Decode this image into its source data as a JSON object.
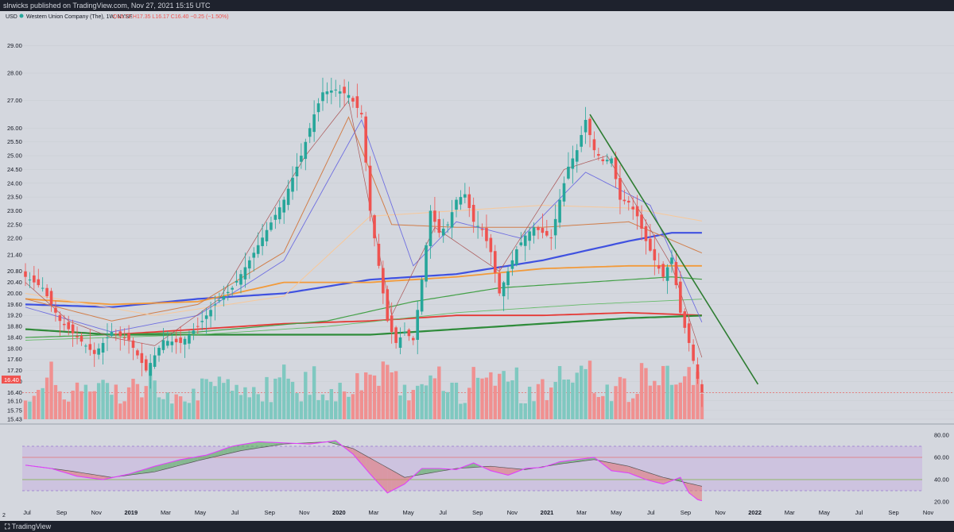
{
  "header": {
    "publish_line": "slrwicks published on TradingView.com, Nov 27, 2021 15:15 UTC",
    "currency": "USD",
    "symbol": "Western Union Company (The), 1W, NYSE",
    "ohlc": "O16.72 H17.35 L16.17 C16.40 −0.25 (−1.50%)",
    "ohlc_color": "#ef5350"
  },
  "footer": {
    "brand": "TradingView",
    "logo_icon": "tradingview-logo-icon"
  },
  "colors": {
    "background": "#d4d7de",
    "up_candle": "#26a69a",
    "down_candle": "#ef5350",
    "volume_up": "#7fc8c0",
    "volume_down": "#f09090",
    "trendline": "#2e7d32",
    "price_tag": "#ef5350",
    "rsi_line": "#e040fb",
    "rsi_band": "#c6b3e0"
  },
  "chart_data": [
    {
      "type": "candlestick",
      "title": "Western Union Company (The), 1W, NYSE",
      "ylabel": "USD",
      "ylim": [
        15.43,
        29.5
      ],
      "y_ticks": [
        "29.00",
        "28.00",
        "27.00",
        "26.00",
        "25.50",
        "25.00",
        "24.50",
        "24.00",
        "23.50",
        "23.00",
        "22.50",
        "22.00",
        "21.40",
        "20.80",
        "20.40",
        "20.00",
        "19.60",
        "19.20",
        "18.80",
        "18.40",
        "18.00",
        "17.60",
        "17.20",
        "16.80",
        "16.40",
        "16.10",
        "15.75",
        "15.43"
      ],
      "last_price": 16.4,
      "x_ticks": [
        "Jul",
        "Sep",
        "Nov",
        "2019",
        "Mar",
        "May",
        "Jul",
        "Sep",
        "Nov",
        "2020",
        "Mar",
        "May",
        "Jul",
        "Sep",
        "Nov",
        "2021",
        "Mar",
        "May",
        "Jul",
        "Sep",
        "Nov",
        "2022",
        "Mar",
        "May",
        "Jul",
        "Sep",
        "Nov"
      ],
      "anchors": [
        [
          0,
          20.6
        ],
        [
          4,
          20.2
        ],
        [
          8,
          19.0
        ],
        [
          12,
          18.4
        ],
        [
          16,
          17.8
        ],
        [
          20,
          18.6
        ],
        [
          24,
          18.3
        ],
        [
          28,
          17.2
        ],
        [
          32,
          18.3
        ],
        [
          36,
          18.2
        ],
        [
          40,
          18.8
        ],
        [
          44,
          19.6
        ],
        [
          48,
          20.2
        ],
        [
          52,
          21.2
        ],
        [
          56,
          22.3
        ],
        [
          60,
          23.4
        ],
        [
          64,
          25.0
        ],
        [
          67,
          26.5
        ],
        [
          69,
          27.3
        ],
        [
          72,
          27.4
        ],
        [
          75,
          27.2
        ],
        [
          78,
          26.5
        ],
        [
          80,
          23.0
        ],
        [
          82,
          21.0
        ],
        [
          84,
          19.0
        ],
        [
          86,
          18.2
        ],
        [
          88,
          18.6
        ],
        [
          90,
          18.3
        ],
        [
          92,
          20.5
        ],
        [
          94,
          23.0
        ],
        [
          96,
          22.2
        ],
        [
          98,
          22.5
        ],
        [
          100,
          23.4
        ],
        [
          102,
          23.6
        ],
        [
          104,
          22.6
        ],
        [
          106,
          22.3
        ],
        [
          108,
          21.5
        ],
        [
          110,
          20.0
        ],
        [
          112,
          20.8
        ],
        [
          114,
          21.6
        ],
        [
          116,
          22.1
        ],
        [
          118,
          22.4
        ],
        [
          120,
          22.2
        ],
        [
          122,
          22.0
        ],
        [
          124,
          23.4
        ],
        [
          126,
          24.6
        ],
        [
          128,
          25.2
        ],
        [
          130,
          26.3
        ],
        [
          132,
          25.2
        ],
        [
          134,
          24.8
        ],
        [
          136,
          24.9
        ],
        [
          138,
          23.4
        ],
        [
          140,
          23.3
        ],
        [
          142,
          22.8
        ],
        [
          144,
          21.9
        ],
        [
          146,
          21.2
        ],
        [
          148,
          20.6
        ],
        [
          150,
          21.3
        ],
        [
          152,
          19.3
        ],
        [
          154,
          18.2
        ],
        [
          156,
          16.9
        ],
        [
          157,
          16.4
        ]
      ],
      "trendline": {
        "from": [
          131,
          26.5
        ],
        "to": [
          170,
          16.7
        ]
      },
      "moving_averages": [
        {
          "color": "#3f51e0",
          "width": 2.2,
          "points": [
            [
              0,
              19.6
            ],
            [
              20,
              19.5
            ],
            [
              40,
              19.8
            ],
            [
              60,
              20.0
            ],
            [
              80,
              20.5
            ],
            [
              100,
              20.7
            ],
            [
              120,
              21.2
            ],
            [
              140,
              21.9
            ],
            [
              150,
              22.2
            ],
            [
              158,
              22.2
            ]
          ]
        },
        {
          "color": "#f29a3a",
          "width": 1.8,
          "points": [
            [
              0,
              19.8
            ],
            [
              20,
              19.6
            ],
            [
              40,
              19.7
            ],
            [
              60,
              20.4
            ],
            [
              80,
              20.4
            ],
            [
              100,
              20.6
            ],
            [
              120,
              20.9
            ],
            [
              140,
              21.0
            ],
            [
              158,
              21.0
            ]
          ]
        },
        {
          "color": "#e53935",
          "width": 1.8,
          "points": [
            [
              0,
              18.7
            ],
            [
              20,
              18.5
            ],
            [
              40,
              18.7
            ],
            [
              60,
              18.9
            ],
            [
              80,
              19.0
            ],
            [
              100,
              19.2
            ],
            [
              120,
              19.2
            ],
            [
              140,
              19.3
            ],
            [
              158,
              19.2
            ]
          ]
        },
        {
          "color": "#2e8b3a",
          "width": 2.2,
          "points": [
            [
              0,
              18.7
            ],
            [
              20,
              18.5
            ],
            [
              40,
              18.5
            ],
            [
              60,
              18.5
            ],
            [
              80,
              18.5
            ],
            [
              100,
              18.7
            ],
            [
              120,
              18.9
            ],
            [
              140,
              19.1
            ],
            [
              158,
              19.2
            ]
          ]
        },
        {
          "color": "#43a047",
          "width": 1.2,
          "points": [
            [
              0,
              18.4
            ],
            [
              40,
              18.6
            ],
            [
              70,
              19.0
            ],
            [
              90,
              19.7
            ],
            [
              110,
              20.2
            ],
            [
              130,
              20.4
            ],
            [
              150,
              20.6
            ],
            [
              158,
              20.5
            ]
          ]
        },
        {
          "color": "#66bb6a",
          "width": 0.9,
          "points": [
            [
              0,
              18.3
            ],
            [
              40,
              18.5
            ],
            [
              70,
              18.8
            ],
            [
              100,
              19.3
            ],
            [
              130,
              19.6
            ],
            [
              158,
              19.8
            ]
          ]
        },
        {
          "color": "#d17e4a",
          "width": 1.0,
          "points": [
            [
              0,
              19.8
            ],
            [
              20,
              19.0
            ],
            [
              40,
              19.6
            ],
            [
              60,
              21.5
            ],
            [
              75,
              26.4
            ],
            [
              85,
              22.5
            ],
            [
              100,
              22.4
            ],
            [
              120,
              22.4
            ],
            [
              140,
              22.6
            ],
            [
              158,
              21.4
            ]
          ]
        },
        {
          "color": "#f7c89a",
          "width": 1.0,
          "points": [
            [
              0,
              20.0
            ],
            [
              30,
              19.2
            ],
            [
              60,
              19.9
            ],
            [
              80,
              22.8
            ],
            [
              100,
              23.0
            ],
            [
              120,
              23.2
            ],
            [
              140,
              23.1
            ],
            [
              158,
              22.6
            ]
          ]
        },
        {
          "color": "#6f6fe0",
          "width": 0.9,
          "points": [
            [
              0,
              19.5
            ],
            [
              20,
              18.6
            ],
            [
              40,
              19.2
            ],
            [
              60,
              21.2
            ],
            [
              78,
              26.3
            ],
            [
              90,
              21.0
            ],
            [
              100,
              22.6
            ],
            [
              115,
              22.0
            ],
            [
              130,
              24.4
            ],
            [
              145,
              23.2
            ],
            [
              158,
              18.6
            ]
          ]
        },
        {
          "color": "#a55",
          "width": 0.7,
          "points": [
            [
              0,
              20.4
            ],
            [
              10,
              19.0
            ],
            [
              20,
              18.4
            ],
            [
              30,
              18.1
            ],
            [
              45,
              19.8
            ],
            [
              65,
              25.0
            ],
            [
              75,
              27.0
            ],
            [
              85,
              19.2
            ],
            [
              95,
              22.4
            ],
            [
              110,
              20.8
            ],
            [
              125,
              24.5
            ],
            [
              135,
              25.0
            ],
            [
              150,
              21.0
            ],
            [
              158,
              17.2
            ]
          ]
        }
      ],
      "volume_max_note": "relative volume per week, 0-1"
    },
    {
      "type": "line",
      "title": "",
      "ylim": [
        20,
        80
      ],
      "y_ticks": [
        "80.00",
        "60.00",
        "40.00",
        "20.00"
      ],
      "upper_band": 70,
      "lower_band": 30,
      "level_lines": [
        60,
        40
      ],
      "rsi_anchors": [
        [
          0,
          53
        ],
        [
          6,
          50
        ],
        [
          12,
          43
        ],
        [
          18,
          40
        ],
        [
          24,
          45
        ],
        [
          30,
          52
        ],
        [
          36,
          58
        ],
        [
          42,
          62
        ],
        [
          48,
          70
        ],
        [
          54,
          74
        ],
        [
          60,
          73
        ],
        [
          66,
          72
        ],
        [
          72,
          75
        ],
        [
          76,
          63
        ],
        [
          80,
          45
        ],
        [
          84,
          28
        ],
        [
          88,
          36
        ],
        [
          92,
          50
        ],
        [
          96,
          50
        ],
        [
          100,
          49
        ],
        [
          104,
          55
        ],
        [
          108,
          48
        ],
        [
          112,
          44
        ],
        [
          116,
          50
        ],
        [
          120,
          51
        ],
        [
          124,
          56
        ],
        [
          128,
          58
        ],
        [
          132,
          60
        ],
        [
          136,
          48
        ],
        [
          140,
          46
        ],
        [
          144,
          40
        ],
        [
          148,
          36
        ],
        [
          152,
          42
        ],
        [
          154,
          28
        ],
        [
          156,
          22
        ],
        [
          157,
          21
        ]
      ],
      "signal_anchors": [
        [
          0,
          53
        ],
        [
          10,
          48
        ],
        [
          20,
          42
        ],
        [
          30,
          47
        ],
        [
          40,
          57
        ],
        [
          50,
          66
        ],
        [
          60,
          72
        ],
        [
          70,
          74
        ],
        [
          76,
          68
        ],
        [
          82,
          55
        ],
        [
          88,
          42
        ],
        [
          94,
          46
        ],
        [
          100,
          50
        ],
        [
          108,
          52
        ],
        [
          116,
          49
        ],
        [
          124,
          54
        ],
        [
          132,
          58
        ],
        [
          140,
          52
        ],
        [
          148,
          42
        ],
        [
          157,
          34
        ]
      ]
    }
  ]
}
